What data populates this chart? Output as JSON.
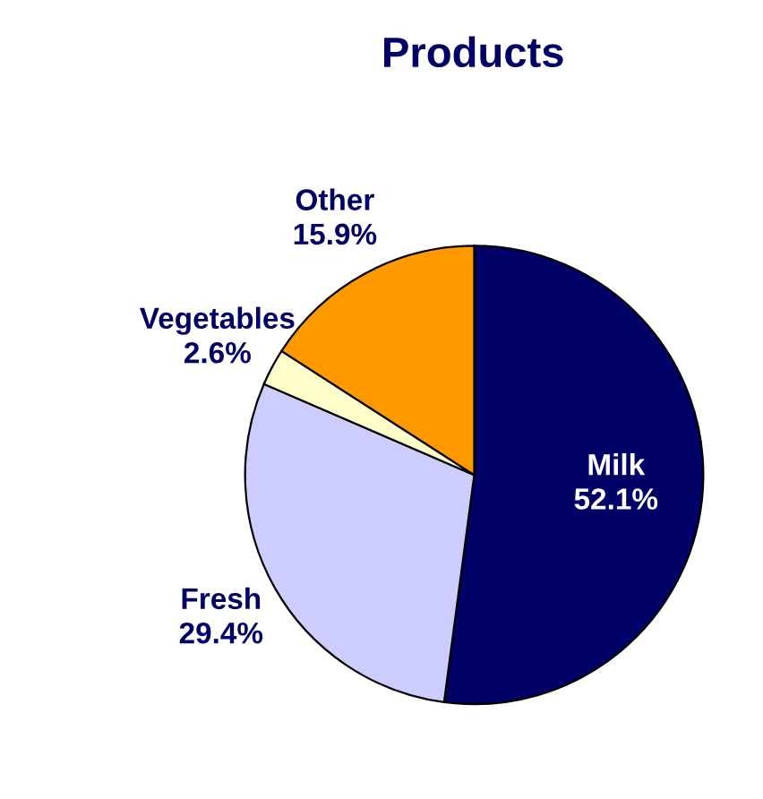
{
  "chart_data": {
    "type": "pie",
    "title": "Products",
    "categories": [
      "Milk",
      "Fresh",
      "Vegetables",
      "Other"
    ],
    "values": [
      52.1,
      29.4,
      2.6,
      15.9
    ],
    "value_labels": [
      "52.1%",
      "29.4%",
      "2.6%",
      "15.9%"
    ],
    "colors": [
      "#000066",
      "#ccccff",
      "#ffffcc",
      "#ff9900"
    ]
  }
}
